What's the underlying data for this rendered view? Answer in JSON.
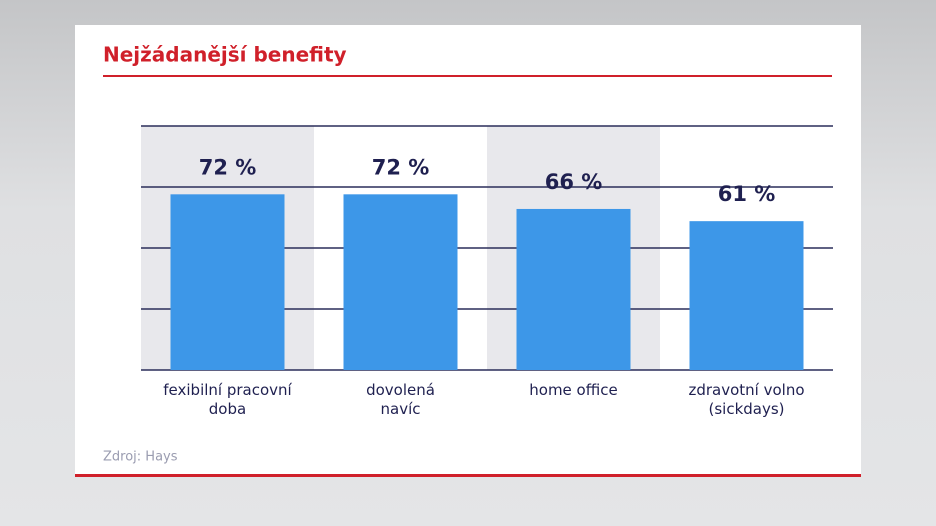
{
  "chart_data": {
    "type": "bar",
    "title": "Nejžádanější benefity",
    "categories": [
      "fexibilní pracovní\ndoba",
      "dovolená\nnavíc",
      "home office",
      "zdravotní volno\n(sickdays)"
    ],
    "values": [
      72,
      72,
      66,
      61
    ],
    "value_labels": [
      "72 %",
      "72 %",
      "66 %",
      "61 %"
    ],
    "color": "#3d97e8",
    "ylim": [
      0,
      100
    ],
    "yticks": [
      0,
      25,
      50,
      75,
      100
    ],
    "grid": true,
    "source": "Zdroj: Hays"
  }
}
